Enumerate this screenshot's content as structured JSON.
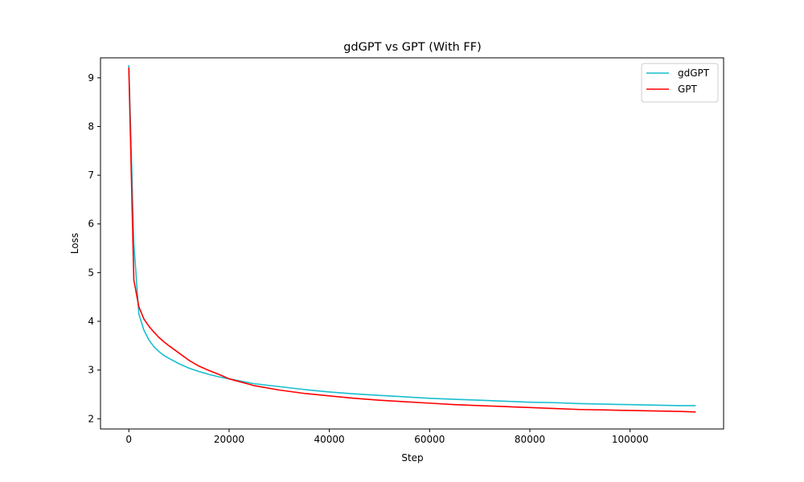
{
  "chart_data": {
    "type": "line",
    "title": "gdGPT vs GPT (With FF)",
    "xlabel": "Step",
    "ylabel": "Loss",
    "xlim": [
      -5650,
      118650
    ],
    "ylim": [
      1.79,
      9.41
    ],
    "xticks": [
      0,
      20000,
      40000,
      60000,
      80000,
      100000
    ],
    "yticks": [
      2,
      3,
      4,
      5,
      6,
      7,
      8,
      9
    ],
    "grid": false,
    "legend_position": "top-right",
    "series": [
      {
        "name": "gdGPT",
        "color": "#17becf",
        "x": [
          0,
          1000,
          2000,
          3000,
          4000,
          5000,
          6000,
          7000,
          8000,
          10000,
          12000,
          14000,
          16000,
          18000,
          20000,
          25000,
          30000,
          35000,
          40000,
          45000,
          50000,
          55000,
          60000,
          65000,
          70000,
          75000,
          80000,
          85000,
          90000,
          95000,
          100000,
          105000,
          110000,
          113000
        ],
        "y": [
          9.25,
          5.6,
          4.15,
          3.82,
          3.62,
          3.48,
          3.38,
          3.3,
          3.24,
          3.13,
          3.04,
          2.97,
          2.91,
          2.86,
          2.82,
          2.72,
          2.66,
          2.6,
          2.55,
          2.51,
          2.48,
          2.45,
          2.42,
          2.4,
          2.38,
          2.36,
          2.34,
          2.33,
          2.31,
          2.3,
          2.29,
          2.28,
          2.27,
          2.27
        ]
      },
      {
        "name": "GPT",
        "color": "#ff0000",
        "x": [
          0,
          1000,
          2000,
          3000,
          4000,
          5000,
          6000,
          7000,
          8000,
          10000,
          12000,
          14000,
          16000,
          18000,
          20000,
          25000,
          30000,
          35000,
          40000,
          45000,
          50000,
          55000,
          60000,
          65000,
          70000,
          75000,
          80000,
          85000,
          90000,
          95000,
          100000,
          105000,
          110000,
          113000
        ],
        "y": [
          9.2,
          4.85,
          4.3,
          4.05,
          3.9,
          3.78,
          3.67,
          3.58,
          3.5,
          3.35,
          3.2,
          3.08,
          2.99,
          2.91,
          2.82,
          2.68,
          2.59,
          2.52,
          2.47,
          2.42,
          2.38,
          2.35,
          2.32,
          2.29,
          2.27,
          2.25,
          2.23,
          2.21,
          2.19,
          2.18,
          2.17,
          2.16,
          2.15,
          2.14
        ]
      }
    ]
  }
}
